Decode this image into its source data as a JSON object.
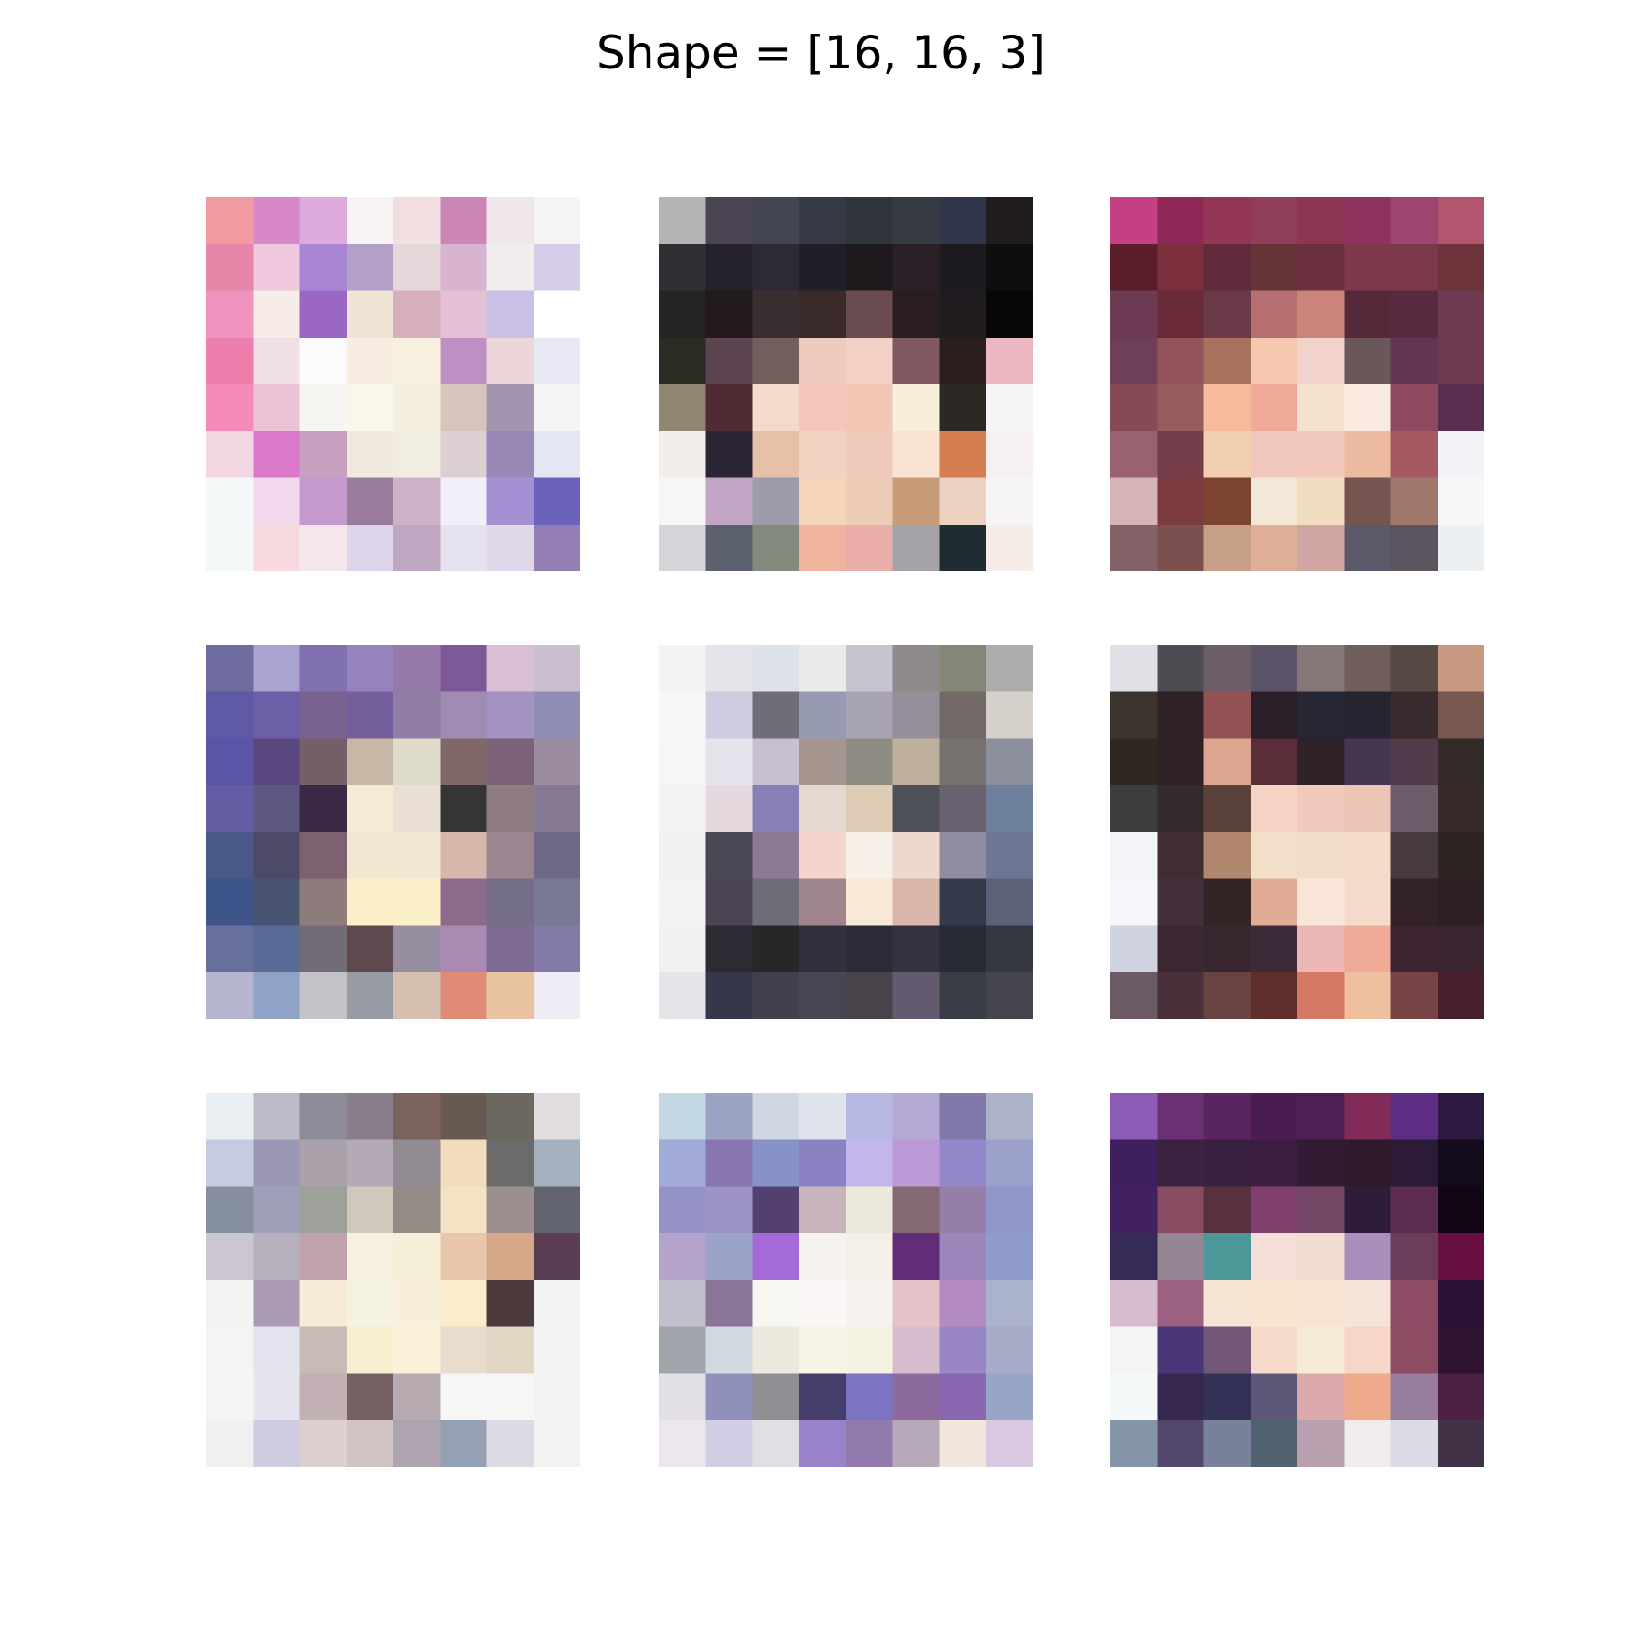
{
  "title": "Shape = [16, 16, 3]",
  "grid": {
    "rows": 3,
    "cols": 3
  },
  "image_shape": [
    16,
    16,
    3
  ],
  "thumbnails": [
    {
      "description": "pastel pink, lavender and white pixel mosaic",
      "grid": [
        [
          "#f19aa1",
          "#d888c9",
          "#deaadb",
          "#f8f3f3",
          "#f2dde0",
          "#cb86b6",
          "#f0e7ed",
          "#f5f4f4"
        ],
        [
          "#e686a8",
          "#f0c8de",
          "#a886d5",
          "#b3a0c7",
          "#e5d6d9",
          "#d9b4d0",
          "#f3eeee",
          "#d6cdea"
        ],
        [
          "#ef94be",
          "#f7ece8",
          "#9a68c4",
          "#f0e5d5",
          "#d6b0bc",
          "#e4c0d4",
          "#cac0e6",
          "#ffffff"
        ],
        [
          "#ee7fad",
          "#f0e0e6",
          "#fbfbfb",
          "#f8ede1",
          "#f7f0de",
          "#bd8fc3",
          "#ecd6da",
          "#e8e8f5"
        ],
        [
          "#f58cb8",
          "#edc2d6",
          "#f7f5f2",
          "#faf6ea",
          "#f5efdf",
          "#d5c5bb",
          "#a394af",
          "#f5f5f5"
        ],
        [
          "#f3d8e3",
          "#dc78c9",
          "#c6a0be",
          "#f1e8e0",
          "#f2ede1",
          "#dcd0d2",
          "#9988b5",
          "#e5e6f4"
        ],
        [
          "#f4f8f8",
          "#f2d8ec",
          "#c49ace",
          "#997c9b",
          "#cdb3c8",
          "#f2effa",
          "#a590d4",
          "#6b63bb"
        ],
        [
          "#f5f8f8",
          "#f6d8de",
          "#f5e6ee",
          "#ddd3ea",
          "#c1a8c2",
          "#e6e1ef",
          "#e0d7eb",
          "#9580b6"
        ]
      ]
    },
    {
      "description": "portrait with dark hair and pale face",
      "grid": [
        [
          "#b4b4b2",
          "#4b4553",
          "#444552",
          "#363a45",
          "#30343b",
          "#363a42",
          "#31374a",
          "#211d1e"
        ],
        [
          "#2f2f33",
          "#25212a",
          "#2c2a33",
          "#201f27",
          "#1d191c",
          "#2c2028",
          "#1d1b20",
          "#0e0e0e"
        ],
        [
          "#252422",
          "#221a1c",
          "#3a2f30",
          "#3a2a2a",
          "#6a4b4f",
          "#2b1e22",
          "#201c1f",
          "#070707"
        ],
        [
          "#2b2b24",
          "#5c4550",
          "#735e5e",
          "#edcbbd",
          "#f4d1c6",
          "#805a60",
          "#2b1e1f",
          "#ebb8c2"
        ],
        [
          "#8f8571",
          "#4f2b33",
          "#f6dac9",
          "#f3c8b8",
          "#f2c6b5",
          "#f7eedb",
          "#2c2823",
          "#f5f5f5"
        ],
        [
          "#f2eeea",
          "#2c2536",
          "#e6c0a8",
          "#f2d2c0",
          "#f0cbbb",
          "#f9e4d4",
          "#d47e52",
          "#f6f0f0"
        ],
        [
          "#f6f6f6",
          "#c2a4c4",
          "#9c9caa",
          "#f4d5b9",
          "#ecccb6",
          "#c99c79",
          "#ecd1c1",
          "#f6f4f4"
        ],
        [
          "#d6d4d8",
          "#5c6170",
          "#838a7d",
          "#f1b39e",
          "#eaaeaa",
          "#a6a2aa",
          "#1f2c31",
          "#f7ede8"
        ]
      ]
    },
    {
      "description": "portrait with magenta and maroon background",
      "grid": [
        [
          "#c63e86",
          "#8f2857",
          "#943656",
          "#913e5d",
          "#8c3656",
          "#8f325d",
          "#9b4570",
          "#b25670"
        ],
        [
          "#5a1e2a",
          "#7c2f3c",
          "#62293a",
          "#643436",
          "#6b3040",
          "#7e3849",
          "#7b3848",
          "#6c343a"
        ],
        [
          "#6c3a52",
          "#672a36",
          "#6b3a48",
          "#b66f70",
          "#cb8479",
          "#55283a",
          "#5a2b40",
          "#6e3a52"
        ],
        [
          "#6e3f56",
          "#925459",
          "#a6725c",
          "#f6c8b0",
          "#f2d3cb",
          "#6a5759",
          "#653454",
          "#6d3a52"
        ],
        [
          "#864a56",
          "#955c5c",
          "#f5bb9a",
          "#f0aa98",
          "#f6e2cd",
          "#fbeae0",
          "#8e4860",
          "#5b2d4e"
        ],
        [
          "#9a6170",
          "#733c48",
          "#f2cfb0",
          "#f1c7bc",
          "#f2c8bc",
          "#ebba9f",
          "#a55a61",
          "#f3f3f7"
        ],
        [
          "#d5b5b7",
          "#7c3c3f",
          "#7b442e",
          "#f3e8d8",
          "#f0dcc0",
          "#765450",
          "#a0776b",
          "#f7f7f7"
        ],
        [
          "#846067",
          "#7d5050",
          "#c8a088",
          "#dfae96",
          "#d0a6a3",
          "#5b5869",
          "#5b535d",
          "#edf0f3"
        ]
      ]
    },
    {
      "description": "purple toned portrait with face in center",
      "grid": [
        [
          "#6f6da0",
          "#a9a3d0",
          "#8070b0",
          "#9682bd",
          "#957aa8",
          "#7d5998",
          "#d8bfd5",
          "#cbbfcf"
        ],
        [
          "#5f5aa5",
          "#6c5fa8",
          "#7a6290",
          "#735f9b",
          "#917ca4",
          "#a08cb2",
          "#a492c2",
          "#908eb4"
        ],
        [
          "#5a55a6",
          "#5a4780",
          "#735f66",
          "#c8b6a6",
          "#dedbc8",
          "#816868",
          "#7b6277",
          "#9c8ca2"
        ],
        [
          "#635da4",
          "#5c5882",
          "#3a2a45",
          "#f5ead4",
          "#eadfd5",
          "#353536",
          "#8f7c82",
          "#857a92"
        ],
        [
          "#4a5889",
          "#4d4968",
          "#7d6171",
          "#f4e7d1",
          "#f3e7d3",
          "#d8b7ab",
          "#9a8590",
          "#6d6888"
        ],
        [
          "#3d5588",
          "#495472",
          "#8e7c7d",
          "#faefc8",
          "#fbf0c8",
          "#8e6b8b",
          "#746e88",
          "#797996"
        ],
        [
          "#66709a",
          "#5a6a97",
          "#726c78",
          "#5e4a4e",
          "#968fa1",
          "#aa8ab3",
          "#7e6b93",
          "#847aa7"
        ],
        [
          "#b5b5d0",
          "#8ea3c5",
          "#c3c2c8",
          "#979ba4",
          "#d6bfae",
          "#e08b78",
          "#e9c4a2",
          "#efebf4"
        ]
      ]
    },
    {
      "description": "grayscale portrait with light background",
      "grid": [
        [
          "#f3f3f3",
          "#e5e4eb",
          "#dde2e8",
          "#e9eaea",
          "#c6c3ce",
          "#8f8a8c",
          "#858776",
          "#aeacaa"
        ],
        [
          "#f7f7f7",
          "#cfcbe0",
          "#6e6d78",
          "#979ab3",
          "#a9a3b6",
          "#968e99",
          "#736966",
          "#d6d0ca"
        ],
        [
          "#f6f6f6",
          "#e5e3ec",
          "#c8bfd1",
          "#a5958e",
          "#8e8b83",
          "#bfb09d",
          "#777170",
          "#8c909e"
        ],
        [
          "#f3f3f3",
          "#e5d8de",
          "#8780b4",
          "#e3d9d0",
          "#dfccb5",
          "#4e5059",
          "#696270",
          "#6f809d"
        ],
        [
          "#f1f1f1",
          "#4c4755",
          "#8c7a94",
          "#f3d5cc",
          "#f7f0e8",
          "#edd8cc",
          "#908b9e",
          "#6d7693"
        ],
        [
          "#f3f3f3",
          "#4b4454",
          "#6e6e79",
          "#a0848e",
          "#f8e8d8",
          "#d8b6a8",
          "#353a4a",
          "#5b6277"
        ],
        [
          "#f1f1f1",
          "#2c2b33",
          "#272729",
          "#31313e",
          "#2c2b38",
          "#343140",
          "#292b32",
          "#353840"
        ],
        [
          "#e6e4e8",
          "#36374a",
          "#40404e",
          "#454652",
          "#48434b",
          "#645a6f",
          "#3a3d45",
          "#43444c"
        ]
      ]
    },
    {
      "description": "dark portrait with face on right side",
      "grid": [
        [
          "#e0e1e6",
          "#4e4b52",
          "#6c5e67",
          "#5a5368",
          "#857677",
          "#6f5e5c",
          "#564845",
          "#c79980"
        ],
        [
          "#3c342f",
          "#2f2226",
          "#925152",
          "#2a1f28",
          "#272633",
          "#262430",
          "#3a2b2f",
          "#77574f"
        ],
        [
          "#2f2822",
          "#2e2226",
          "#dda690",
          "#5a2e38",
          "#2f2228",
          "#44364e",
          "#523c4b",
          "#312a27"
        ],
        [
          "#3d3d40",
          "#342a2c",
          "#5a413a",
          "#f5d4c6",
          "#f3c8bd",
          "#ecc4b5",
          "#6d5c6a",
          "#382a2b"
        ],
        [
          "#f2f4f8",
          "#412c33",
          "#b1866e",
          "#f4e0c8",
          "#f2dcc8",
          "#f6dcc8",
          "#463a3e",
          "#2c2322"
        ],
        [
          "#f6f6fa",
          "#43303a",
          "#352426",
          "#e0ac96",
          "#fae6d8",
          "#f6dacc",
          "#332229",
          "#2f2023"
        ],
        [
          "#d0d4e2",
          "#3b2832",
          "#38272f",
          "#3c2c3a",
          "#ecb6b4",
          "#f0aa98",
          "#3c2430",
          "#3a2430"
        ],
        [
          "#6b5a63",
          "#4a303a",
          "#694242",
          "#5e2e2d",
          "#d57866",
          "#efc0a0",
          "#784547",
          "#46202a"
        ]
      ]
    },
    {
      "description": "neutral beige and gray portrait",
      "grid": [
        [
          "#e9eef2",
          "#bbbac7",
          "#8d8b97",
          "#8a7e8a",
          "#7c625c",
          "#685a50",
          "#6c6860",
          "#e2dedf"
        ],
        [
          "#c6ccdf",
          "#9a98b5",
          "#aba1ab",
          "#b3aab6",
          "#928a93",
          "#f2dcbc",
          "#6b6b6b",
          "#a4b2c0"
        ],
        [
          "#868f9f",
          "#9ea0ba",
          "#9ea09a",
          "#cfc9bc",
          "#948b86",
          "#f3e3c4",
          "#9d8f90",
          "#626570"
        ],
        [
          "#cbc6d0",
          "#b5b0bb",
          "#bfa2ac",
          "#f7f1df",
          "#f6efd8",
          "#e8c6aa",
          "#d6a88a",
          "#5a3c53"
        ],
        [
          "#f3f3f3",
          "#aa9ab2",
          "#f6ebd7",
          "#f6f2e0",
          "#f7efdc",
          "#faedcc",
          "#4c3a3d",
          "#f2f2f2"
        ],
        [
          "#f4f4f4",
          "#e3e3ef",
          "#c8bbb6",
          "#f7efd0",
          "#f9f0d8",
          "#e9dccc",
          "#e1d6c4",
          "#f2f2f2"
        ],
        [
          "#f4f4f4",
          "#e6e4ee",
          "#c2b0b4",
          "#756064",
          "#b7abb1",
          "#f6f6f6",
          "#f6f6f6",
          "#f2f2f2"
        ],
        [
          "#f0f0f0",
          "#cfcce2",
          "#dcd1d0",
          "#d1c3c1",
          "#aea4b0",
          "#94a1b4",
          "#dcdbe4",
          "#f2f2f2"
        ]
      ]
    },
    {
      "description": "lavender and blue toned portrait",
      "grid": [
        [
          "#c4d8e4",
          "#9da4c3",
          "#d0d7e2",
          "#dfe3ea",
          "#b7b8e1",
          "#b5a9d5",
          "#8179a9",
          "#acb3c8"
        ],
        [
          "#a2aad8",
          "#8a75b3",
          "#8793c7",
          "#8a82c3",
          "#c3b6ea",
          "#b99ad6",
          "#9487ca",
          "#9ca1cc"
        ],
        [
          "#9592c8",
          "#9c92c6",
          "#533f70",
          "#c9b4be",
          "#ebe9dc",
          "#846873",
          "#957ea8",
          "#9097c8"
        ],
        [
          "#b4a4cc",
          "#9ba3c8",
          "#a46ad8",
          "#f6f2f0",
          "#f4f0e8",
          "#632c78",
          "#9c86bb",
          "#8f9ccc"
        ],
        [
          "#c0c0cc",
          "#8a7598",
          "#f7f6f0",
          "#fbf7f6",
          "#f7f2f0",
          "#e3c2c8",
          "#b58bc4",
          "#aab2cc"
        ],
        [
          "#a2a4ac",
          "#d0d8e0",
          "#ede8de",
          "#f7f4e6",
          "#f5f2e2",
          "#d6bccc",
          "#9986c6",
          "#a8acc8"
        ],
        [
          "#e2e0e6",
          "#8f90bc",
          "#8e8e93",
          "#453e6c",
          "#7c74c2",
          "#8c6a9e",
          "#8867b0",
          "#97a6c6"
        ],
        [
          "#ede6ee",
          "#d0cde4",
          "#e2dee6",
          "#9882cc",
          "#937aad",
          "#b6a9ba",
          "#f2e6dc",
          "#dac8e0"
        ]
      ]
    },
    {
      "description": "deep purple portrait with bright face",
      "grid": [
        [
          "#8c5bb6",
          "#6a3073",
          "#5a2460",
          "#4a1d50",
          "#4e1f52",
          "#822b58",
          "#5d2e84",
          "#2d1840"
        ],
        [
          "#3f205f",
          "#3a2240",
          "#3a2040",
          "#3c1d42",
          "#341b34",
          "#2e1a2a",
          "#2b1b38",
          "#130b1c"
        ],
        [
          "#422163",
          "#884c62",
          "#583040",
          "#7e3f6a",
          "#744666",
          "#2e1d3a",
          "#5e2c4e",
          "#120614"
        ],
        [
          "#362a56",
          "#948593",
          "#4f9899",
          "#f4e0d8",
          "#f1dcd0",
          "#a98fbb",
          "#6b3c5c",
          "#6a1040"
        ],
        [
          "#d6bccc",
          "#9c6080",
          "#f6e4d4",
          "#f9e4d0",
          "#f8e2d2",
          "#f6e4d8",
          "#8c4c66",
          "#2c1236"
        ],
        [
          "#f4f4f4",
          "#4a3676",
          "#715677",
          "#f5dacc",
          "#f5ecd8",
          "#f6d6c6",
          "#8c4c62",
          "#2e1430"
        ],
        [
          "#f5f8f8",
          "#36284e",
          "#343256",
          "#5e5778",
          "#dcaaaa",
          "#eeaa8a",
          "#977e9c",
          "#4b2040"
        ],
        [
          "#8595a8",
          "#53486c",
          "#78809a",
          "#506270",
          "#b8a0ae",
          "#f1ebec",
          "#dcdae4",
          "#423248"
        ]
      ]
    }
  ]
}
